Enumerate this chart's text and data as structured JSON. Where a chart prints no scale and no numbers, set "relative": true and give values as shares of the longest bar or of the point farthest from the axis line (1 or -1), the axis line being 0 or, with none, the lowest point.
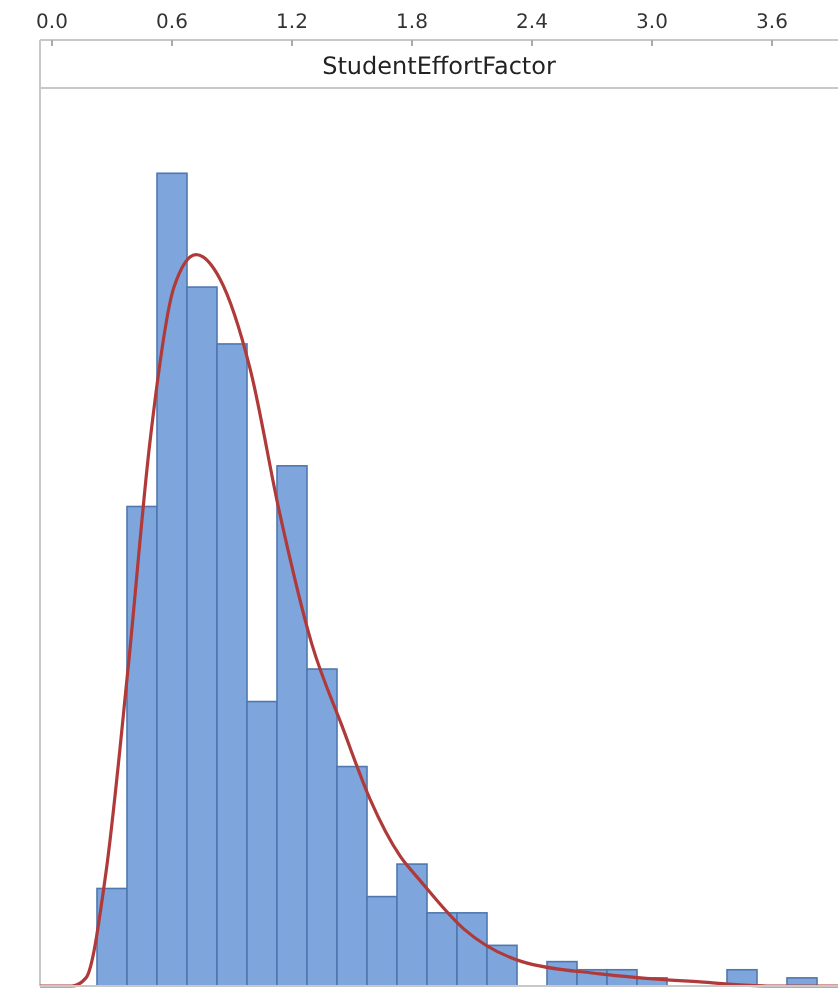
{
  "chart_data": {
    "type": "histogram",
    "xlabel": "StudentEffortFactor",
    "relative": true,
    "xlim": [
      -0.06,
      3.93
    ],
    "xticks": [
      {
        "value": 0,
        "label": "0.0"
      },
      0.6,
      1.2,
      1.8,
      2.4,
      {
        "value": 3,
        "label": "3.0"
      },
      3.6
    ],
    "tick_labels": "x",
    "bins": [
      0.225,
      0.375,
      0.525,
      0.675,
      0.825,
      0.975,
      1.125,
      1.275,
      1.425,
      1.575,
      1.725,
      1.875,
      2.025,
      2.175,
      2.325,
      2.475,
      2.625,
      2.775,
      2.925,
      3.075,
      3.225,
      3.375,
      3.525,
      3.675,
      3.825
    ],
    "series": [
      {
        "color": "#7ea6dc",
        "values": [
          0.12,
          0.59,
          1,
          0.86,
          0.79,
          0.35,
          0.64,
          0.39,
          0.27,
          0.11,
          0.15,
          0.09,
          0.09,
          0.05,
          0,
          0.03,
          0.02,
          0.02,
          0.01,
          0,
          0,
          0.02,
          0,
          0.01
        ]
      },
      {
        "type": "line",
        "color": "#b03a3a",
        "x": [
          -0.06,
          0.1,
          0.17,
          0.27,
          0.38,
          0.49,
          0.61,
          0.72,
          0.84,
          0.99,
          1.14,
          1.3,
          1.45,
          1.59,
          1.74,
          1.84,
          2.06,
          2.35,
          2.74,
          3.24,
          3.6,
          3.93
        ],
        "values": [
          0,
          0,
          0.01,
          0.14,
          0.39,
          0.67,
          0.86,
          0.9,
          0.87,
          0.76,
          0.58,
          0.42,
          0.32,
          0.23,
          0.16,
          0.13,
          0.07,
          0.03,
          0.015,
          0.005,
          0,
          0
        ]
      }
    ]
  }
}
